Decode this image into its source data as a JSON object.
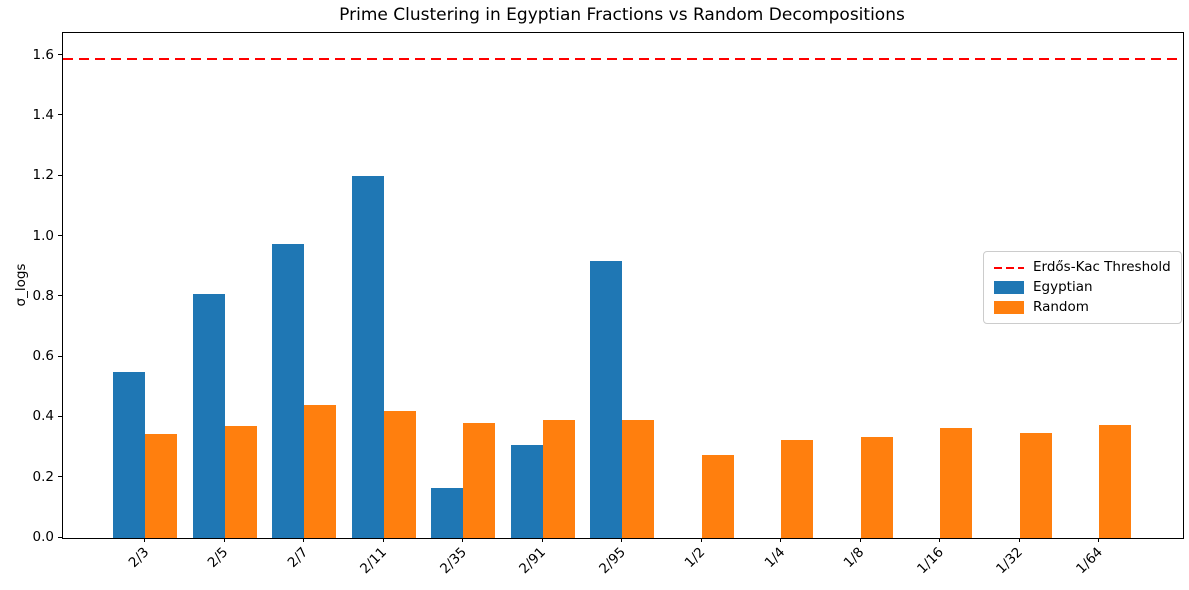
{
  "chart_data": {
    "type": "bar",
    "title": "Prime Clustering in Egyptian Fractions vs Random Decompositions",
    "xlabel": "",
    "ylabel": "σ_logs",
    "categories": [
      "2/3",
      "2/5",
      "2/7",
      "2/11",
      "2/35",
      "2/91",
      "2/95",
      "1/2",
      "1/4",
      "1/8",
      "1/16",
      "1/32",
      "1/64"
    ],
    "series": [
      {
        "name": "Egyptian",
        "color": "#1f77b4",
        "values": [
          0.55,
          0.81,
          0.975,
          1.2,
          0.165,
          0.31,
          0.92,
          0,
          0,
          0,
          0,
          0,
          0
        ]
      },
      {
        "name": "Random",
        "color": "#ff7f0e",
        "values": [
          0.345,
          0.37,
          0.44,
          0.42,
          0.38,
          0.39,
          0.39,
          0.275,
          0.325,
          0.335,
          0.365,
          0.35,
          0.375
        ]
      }
    ],
    "threshold": {
      "label": "Erdős-Kac Threshold",
      "value": 1.59,
      "color": "#ff0000",
      "style": "dashed"
    },
    "ylim": [
      0.0,
      1.675
    ],
    "yticks": [
      0.0,
      0.2,
      0.4,
      0.6,
      0.8,
      1.0,
      1.2,
      1.4,
      1.6
    ],
    "x_tick_rotation": 45,
    "grid": false,
    "legend_position": "center-right",
    "background_color": "#ffffff",
    "axis_color": "#000000"
  }
}
